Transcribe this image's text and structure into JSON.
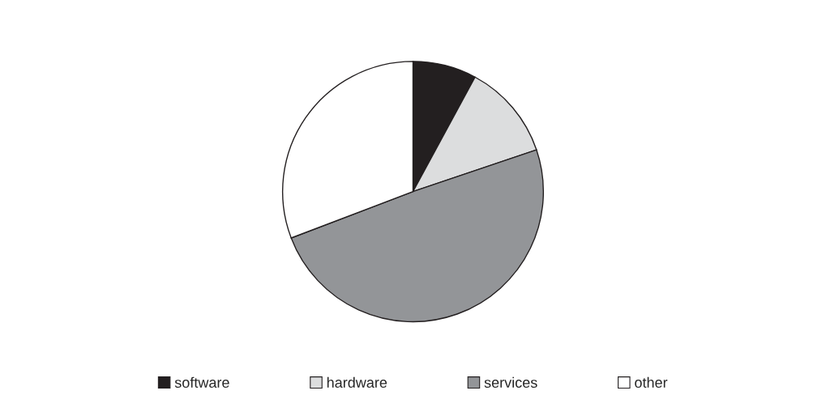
{
  "chart_data": {
    "type": "pie",
    "categories": [
      "software",
      "hardware",
      "services",
      "other"
    ],
    "values": [
      7.9,
      11.9,
      49.4,
      30.8
    ],
    "colors": [
      "#231f20",
      "#dcddde",
      "#939598",
      "#ffffff"
    ],
    "legend": "bottom"
  }
}
